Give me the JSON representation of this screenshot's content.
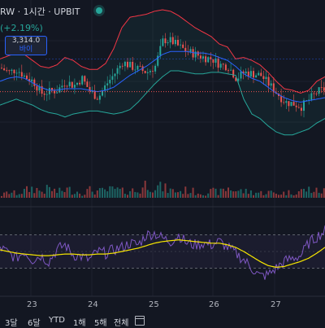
{
  "header": {
    "title": "RW · 1시간 · UPBIT",
    "change": "(+2.19%)",
    "buy_price": "3,314.0",
    "buy_label": "바이"
  },
  "colors": {
    "up": "#26a69a",
    "down": "#ef5350",
    "bb_upper": "#f23645",
    "bb_lower": "#26a69a",
    "bb_basis": "#2962ff",
    "rsi": "#7e57c2",
    "rsi_ma": "#f7e600"
  },
  "x_axis_labels": [
    "23",
    "24",
    "25",
    "26",
    "27"
  ],
  "timeframes": [
    "3달",
    "6달",
    "YTD",
    "1해",
    "5해",
    "전체"
  ],
  "chart_data": {
    "type": "candlestick",
    "price_ylim": [
      0,
      100
    ],
    "volume_ylim": [
      0,
      50
    ],
    "rsi_ylim": [
      0,
      100
    ],
    "current_price_level": 45,
    "buy_level": 67,
    "anchors": {
      "x": [
        0,
        10,
        20,
        30,
        40,
        50,
        60,
        70,
        80,
        90,
        100,
        110,
        120,
        130,
        140,
        150,
        160,
        170,
        180,
        190,
        200,
        210,
        220,
        230,
        240,
        250,
        260,
        270,
        280,
        290,
        300,
        310,
        320,
        330,
        340,
        350,
        360,
        370,
        380,
        390,
        400
      ],
      "close": [
        61,
        58,
        60,
        55,
        52,
        44,
        45,
        46,
        52,
        49,
        54,
        45,
        41,
        50,
        57,
        65,
        62,
        60,
        58,
        62,
        80,
        79,
        75,
        72,
        70,
        68,
        67,
        63,
        62,
        54,
        58,
        57,
        56,
        50,
        44,
        38,
        37,
        35,
        40,
        45,
        47
      ],
      "bb_upper": [
        67,
        69,
        71,
        70,
        66,
        62,
        61,
        63,
        68,
        66,
        62,
        60,
        60,
        64,
        74,
        88,
        95,
        96,
        97,
        99,
        100,
        99,
        96,
        92,
        88,
        85,
        82,
        77,
        75,
        67,
        68,
        66,
        63,
        58,
        52,
        47,
        46,
        44,
        46,
        52,
        55
      ],
      "bb_basis": [
        52,
        54,
        55,
        54,
        51,
        48,
        46,
        46,
        47,
        47,
        47,
        46,
        45,
        46,
        48,
        52,
        56,
        59,
        62,
        66,
        70,
        72,
        72,
        72,
        71,
        71,
        70,
        68,
        66,
        62,
        57,
        54,
        52,
        48,
        44,
        41,
        39,
        38,
        39,
        40,
        41
      ],
      "bb_lower": [
        36,
        38,
        40,
        38,
        36,
        33,
        31,
        30,
        28,
        30,
        31,
        32,
        32,
        31,
        30,
        31,
        33,
        38,
        44,
        50,
        55,
        59,
        59,
        58,
        57,
        57,
        58,
        58,
        57,
        56,
        40,
        30,
        27,
        22,
        18,
        16,
        16,
        18,
        20,
        24,
        27
      ],
      "volume": [
        3,
        8,
        6,
        10,
        14,
        9,
        13,
        8,
        12,
        10,
        7,
        11,
        9,
        10,
        12,
        9,
        11,
        8,
        22,
        16,
        14,
        10,
        9,
        11,
        8,
        7,
        9,
        8,
        14,
        10,
        9,
        8,
        7,
        8,
        6,
        7,
        8,
        10,
        12,
        9,
        10
      ],
      "rsi": [
        55,
        48,
        42,
        50,
        40,
        45,
        38,
        52,
        58,
        46,
        44,
        40,
        50,
        48,
        52,
        55,
        60,
        58,
        70,
        72,
        66,
        62,
        70,
        60,
        58,
        60,
        58,
        62,
        55,
        48,
        40,
        30,
        20,
        22,
        30,
        38,
        42,
        45,
        60,
        68,
        75
      ],
      "rsi_ma": [
        52,
        50,
        48,
        47,
        46,
        45,
        45,
        46,
        47,
        47,
        46,
        46,
        47,
        47,
        48,
        50,
        52,
        54,
        57,
        60,
        62,
        63,
        64,
        63,
        62,
        61,
        60,
        60,
        58,
        55,
        50,
        44,
        38,
        33,
        31,
        32,
        35,
        38,
        42,
        48,
        55
      ]
    }
  }
}
